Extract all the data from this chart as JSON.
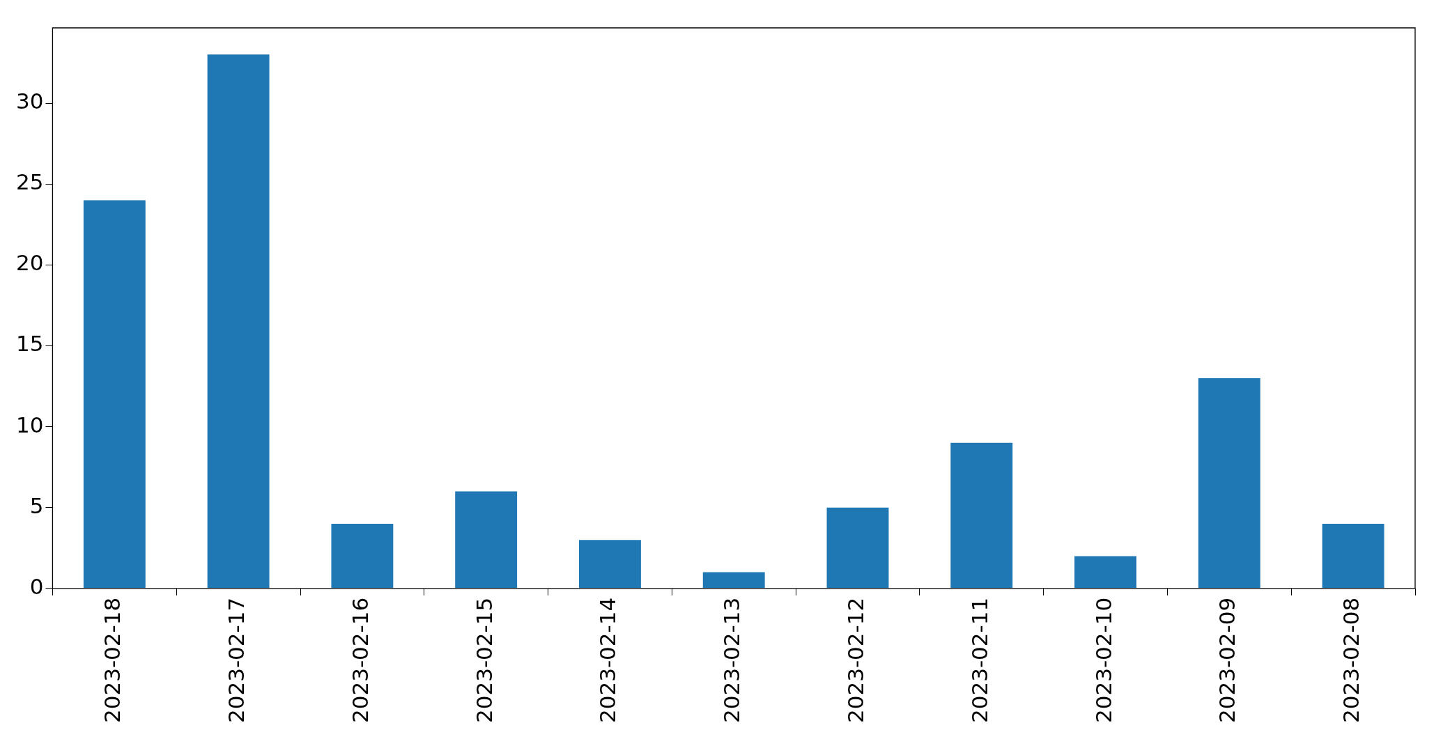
{
  "chart_data": {
    "type": "bar",
    "categories": [
      "2023-02-18",
      "2023-02-17",
      "2023-02-16",
      "2023-02-15",
      "2023-02-14",
      "2023-02-13",
      "2023-02-12",
      "2023-02-11",
      "2023-02-10",
      "2023-02-09",
      "2023-02-08"
    ],
    "values": [
      24,
      33,
      4,
      6,
      3,
      1,
      5,
      9,
      2,
      13,
      4
    ],
    "color": "#1f77b4",
    "ylim": [
      0,
      34.65
    ],
    "yticks": [
      0,
      5,
      10,
      15,
      20,
      25,
      30
    ],
    "grid": false,
    "legend": false
  }
}
